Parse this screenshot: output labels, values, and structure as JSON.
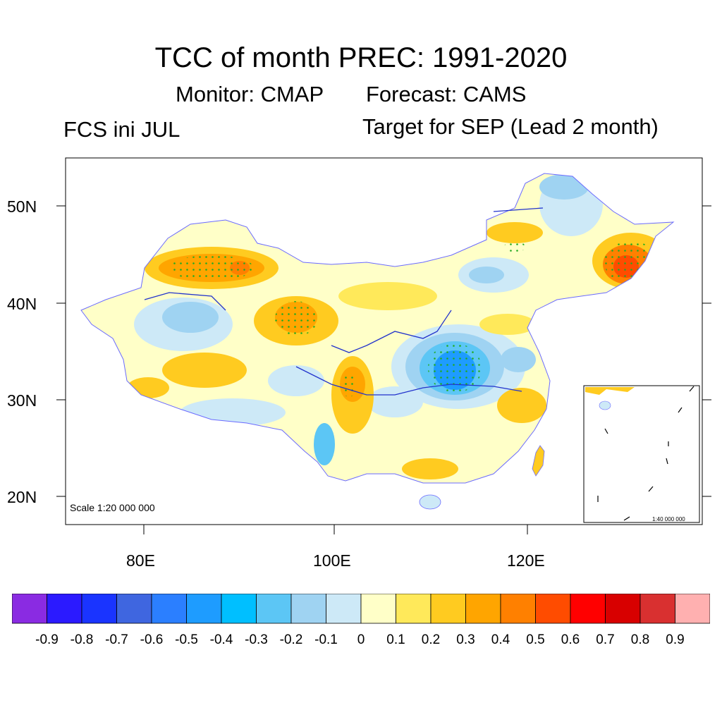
{
  "title": "TCC of month PREC: 1991-2020",
  "subtitle_monitor": "Monitor: CMAP",
  "subtitle_forecast": "Forecast: CAMS",
  "left_label": "FCS ini JUL",
  "right_label": "Target for SEP (Lead 2 month)",
  "map": {
    "lat_labels": [
      "50N",
      "40N",
      "30N",
      "20N"
    ],
    "lon_labels": [
      "80E",
      "100E",
      "120E"
    ],
    "scale_main": "Scale 1:20 000 000",
    "scale_inset": "1:40 000 000",
    "significance_marker_color": "#22aa22"
  },
  "colorbar": {
    "colors": [
      "#8a2be2",
      "#2b1aff",
      "#1a34ff",
      "#3f66e0",
      "#2b7fff",
      "#1e9cff",
      "#00bfff",
      "#5cc6f5",
      "#9fd3f2",
      "#cde9f7",
      "#ffffc8",
      "#ffe95a",
      "#ffcb20",
      "#ffa500",
      "#ff8000",
      "#ff4c00",
      "#ff0000",
      "#d80000",
      "#d93030",
      "#ffb0b0"
    ],
    "labels": [
      "-0.9",
      "-0.8",
      "-0.7",
      "-0.6",
      "-0.5",
      "-0.4",
      "-0.3",
      "-0.2",
      "-0.1",
      "0",
      "0.1",
      "0.2",
      "0.3",
      "0.4",
      "0.5",
      "0.6",
      "0.7",
      "0.8",
      "0.9"
    ]
  }
}
